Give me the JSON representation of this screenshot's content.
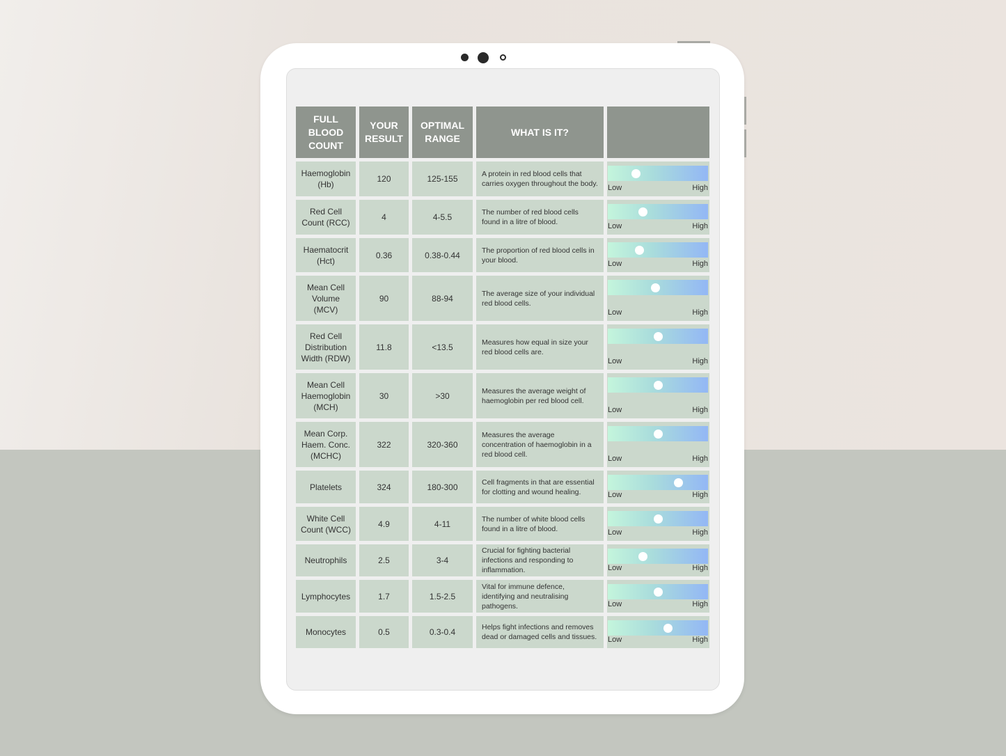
{
  "colors": {
    "header": "#8f958e",
    "cell": "#cbd8cc",
    "bar_start": "#c4f5dc",
    "bar_end": "#93b7f5"
  },
  "table": {
    "headers": [
      "FULL BLOOD COUNT",
      "YOUR RESULT",
      "OPTIMAL RANGE",
      "WHAT IS IT?",
      ""
    ],
    "scale_low": "Low",
    "scale_high": "High",
    "rows": [
      {
        "name": "Haemoglobin (Hb)",
        "result": "120",
        "range": "125-155",
        "desc": "A protein in red blood cells that carries oxygen throughout the body.",
        "level": 0.28
      },
      {
        "name": "Red Cell Count (RCC)",
        "result": "4",
        "range": "4-5.5",
        "desc": "The number of red blood cells found in a litre of blood.",
        "level": 0.35
      },
      {
        "name": "Haematocrit (Hct)",
        "result": "0.36",
        "range": "0.38-0.44",
        "desc": "The proportion of red blood cells in your blood.",
        "level": 0.31
      },
      {
        "name": "Mean Cell Volume (MCV)",
        "result": "90",
        "range": "88-94",
        "desc": "The average size of your individual red blood cells.",
        "level": 0.47
      },
      {
        "name": "Red Cell Distribution Width (RDW)",
        "result": "11.8",
        "range": "<13.5",
        "desc": "Measures how equal in size your red blood cells are.",
        "level": 0.5
      },
      {
        "name": "Mean Cell Haemoglobin (MCH)",
        "result": "30",
        "range": ">30",
        "desc": "Measures the average weight of haemoglobin per red blood cell.",
        "level": 0.5
      },
      {
        "name": "Mean Corp. Haem. Conc. (MCHC)",
        "result": "322",
        "range": "320-360",
        "desc": "Measures the average concentration of haemoglobin in a red blood cell.",
        "level": 0.5
      },
      {
        "name": "Platelets",
        "result": "324",
        "range": "180-300",
        "desc": "Cell fragments in that are essential for clotting and wound healing.",
        "level": 0.7
      },
      {
        "name": "White Cell Count (WCC)",
        "result": "4.9",
        "range": "4-11",
        "desc": "The number of white blood cells found in a litre of blood.",
        "level": 0.5
      },
      {
        "name": "Neutrophils",
        "result": "2.5",
        "range": "3-4",
        "desc": "Crucial for fighting bacterial infections and responding to inflammation.",
        "level": 0.35
      },
      {
        "name": "Lymphocytes",
        "result": "1.7",
        "range": "1.5-2.5",
        "desc": "Vital for immune defence, identifying and neutralising pathogens.",
        "level": 0.5
      },
      {
        "name": "Monocytes",
        "result": "0.5",
        "range": "0.3-0.4",
        "desc": "Helps fight infections and removes dead or damaged cells and tissues.",
        "level": 0.6
      }
    ]
  }
}
